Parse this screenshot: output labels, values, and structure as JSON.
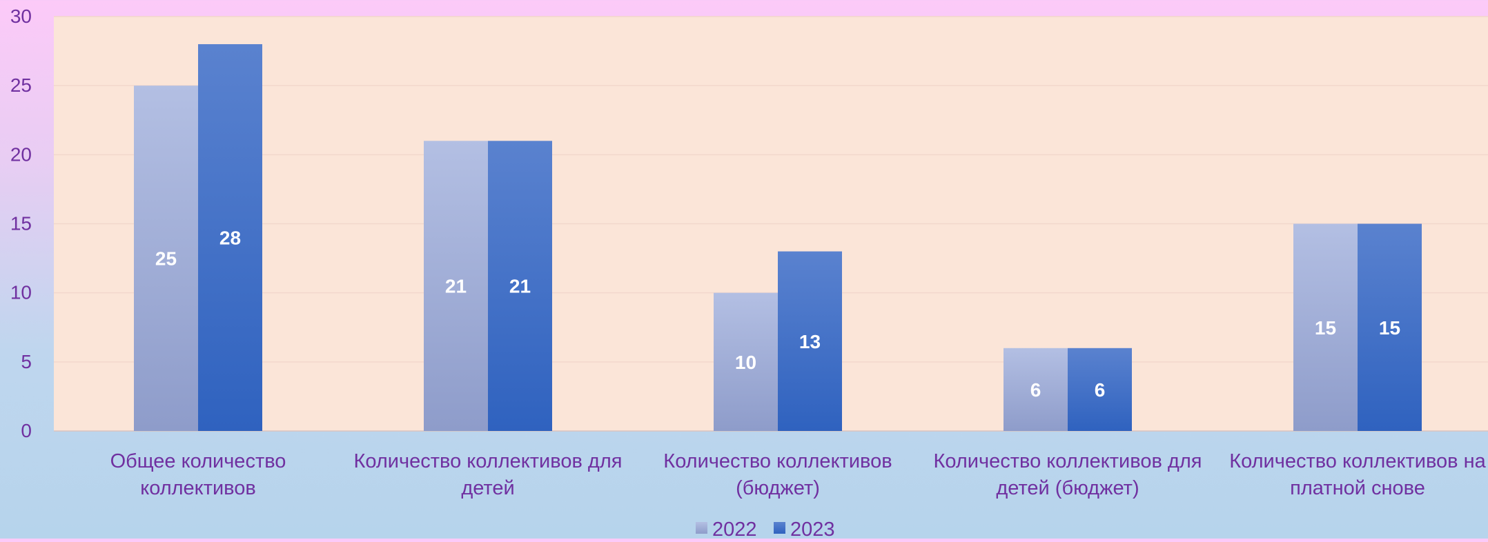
{
  "chart_data": {
    "type": "bar",
    "title": "",
    "xlabel": "",
    "ylabel": "",
    "ylim": [
      0,
      30
    ],
    "yticks": [
      "0",
      "5",
      "10",
      "15",
      "20",
      "25",
      "30"
    ],
    "grid": true,
    "legend_position": "bottom",
    "categories": [
      [
        "Общее количество",
        "коллективов"
      ],
      [
        "Количество коллективов для",
        "детей"
      ],
      [
        "Количество коллективов",
        "(бюджет)"
      ],
      [
        "Количество коллективов для",
        "детей (бюджет)"
      ],
      [
        "Количество коллективов на",
        "платной снове"
      ]
    ],
    "series": [
      {
        "name": "2022",
        "values": [
          25,
          21,
          10,
          6,
          15
        ],
        "color": "#a9b8e0"
      },
      {
        "name": "2023",
        "values": [
          28,
          21,
          13,
          6,
          15
        ],
        "color": "#4472c4"
      }
    ],
    "colors": {
      "plot_background": "#fbe5d8",
      "axis_text": "#7030a0",
      "gridline": "#f2d7cc",
      "data_label": "#ffffff"
    }
  }
}
